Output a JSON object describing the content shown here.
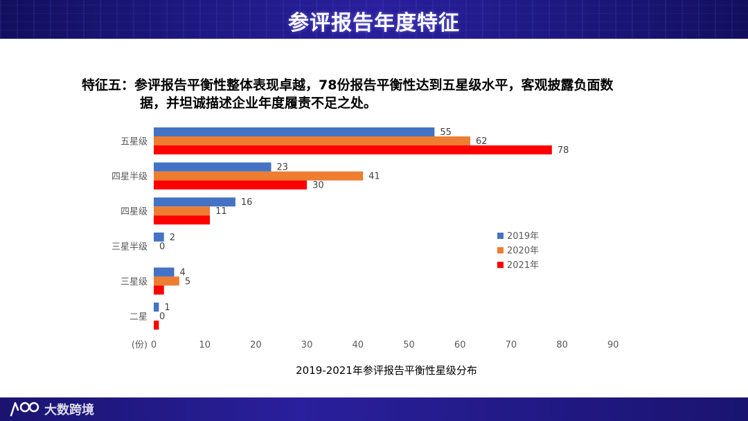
{
  "header": {
    "title": "参评报告年度特征"
  },
  "heading": {
    "line1": "特征五：参评报告平衡性整体表现卓越，78份报告平衡性达到五星级水平，客观披露负面数",
    "line2": "据，并坦诚描述企业年度履责不足之处。"
  },
  "chart_data": {
    "type": "bar",
    "orientation": "horizontal",
    "title": "2019-2021年参评报告平衡性星级分布",
    "xlabel": "(份)",
    "ylabel": "",
    "xlim": [
      0,
      90
    ],
    "xticks": [
      0,
      10,
      20,
      30,
      40,
      50,
      60,
      70,
      80,
      90
    ],
    "categories": [
      "五星级",
      "四星半级",
      "四星级",
      "三星半级",
      "三星级",
      "二星"
    ],
    "series": [
      {
        "name": "2019年",
        "color": "#4472C4",
        "values": [
          55,
          23,
          16,
          2,
          4,
          1
        ],
        "labels": [
          "55",
          "23",
          "16",
          "2",
          "4",
          "1"
        ]
      },
      {
        "name": "2020年",
        "color": "#ED7D31",
        "values": [
          62,
          41,
          11,
          0,
          5,
          0
        ],
        "labels": [
          "62",
          "41",
          "11",
          "0",
          "5",
          "0"
        ]
      },
      {
        "name": "2021年",
        "color": "#FF0000",
        "values": [
          78,
          30,
          11,
          0,
          2,
          1
        ],
        "labels": [
          "78",
          "30",
          "",
          "",
          "",
          ""
        ]
      }
    ],
    "legend_position": "right"
  },
  "brand": {
    "name": "大数跨境"
  }
}
